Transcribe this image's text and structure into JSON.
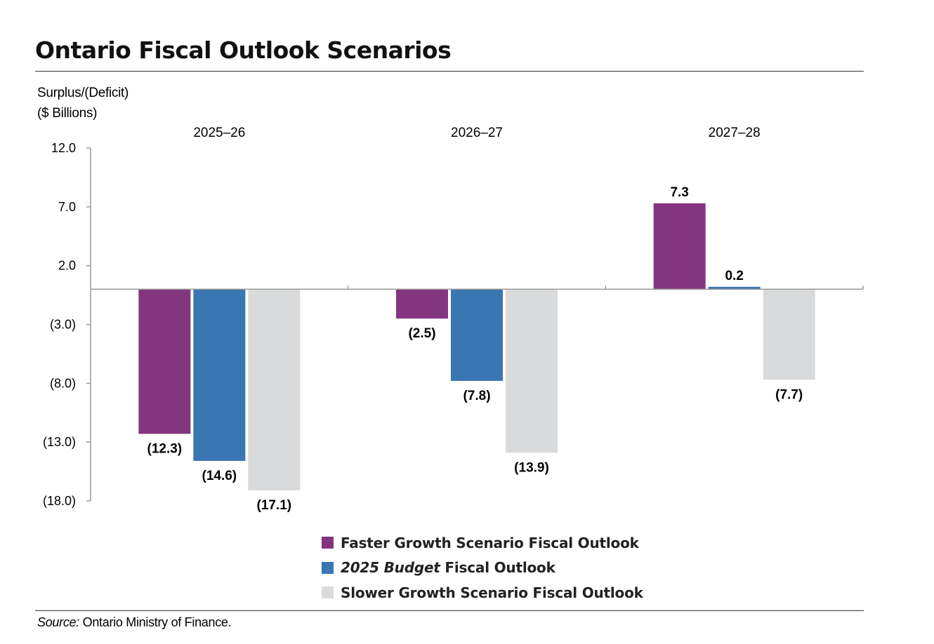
{
  "title": "Ontario Fiscal Outlook Scenarios",
  "y_axis_label_line1": "Surplus/(Deficit)",
  "y_axis_label_line2": "($ Billions)",
  "source_prefix": "Source:",
  "source_text": " Ontario Ministry of Finance.",
  "legend": [
    {
      "text_italic": "",
      "text": "Faster Growth Scenario Fiscal Outlook",
      "color": "#83367f"
    },
    {
      "text_italic": "2025 Budget",
      "text": " Fiscal Outlook",
      "color": "#3a76b1"
    },
    {
      "text_italic": "",
      "text": "Slower Growth Scenario Fiscal Outlook",
      "color": "#d9dadc"
    }
  ],
  "chart_data": {
    "type": "bar",
    "categories": [
      "2025–26",
      "2026–27",
      "2027–28"
    ],
    "series": [
      {
        "name": "Faster Growth Scenario Fiscal Outlook",
        "values": [
          -12.3,
          -2.5,
          7.3
        ],
        "labels": [
          "(12.3)",
          "(2.5)",
          "7.3"
        ],
        "color": "#83367f"
      },
      {
        "name": "2025 Budget Fiscal Outlook",
        "values": [
          -14.6,
          -7.8,
          0.2
        ],
        "labels": [
          "(14.6)",
          "(7.8)",
          "0.2"
        ],
        "color": "#3a76b1"
      },
      {
        "name": "Slower Growth Scenario Fiscal Outlook",
        "values": [
          -17.1,
          -13.9,
          -7.7
        ],
        "labels": [
          "(17.1)",
          "(13.9)",
          "(7.7)"
        ],
        "color": "#d9dadc"
      }
    ],
    "yticks": [
      12.0,
      7.0,
      2.0,
      -3.0,
      -8.0,
      -13.0,
      -18.0
    ],
    "ytick_labels": [
      "12.0",
      "7.0",
      "2.0",
      "(3.0)",
      "(8.0)",
      "(13.0)",
      "(18.0)"
    ],
    "ylim": [
      -18,
      12
    ],
    "legend_position": "bottom",
    "grid": false
  }
}
